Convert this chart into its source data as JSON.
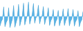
{
  "values": [
    3.0,
    5.5,
    7.0,
    14.0,
    2.5,
    5.0,
    6.5,
    13.5,
    2.0,
    4.5,
    7.0,
    14.8,
    2.2,
    5.0,
    7.5,
    15.5,
    3.0,
    6.0,
    8.5,
    16.2,
    3.5,
    6.5,
    9.0,
    16.8,
    4.0,
    7.0,
    9.5,
    16.0,
    4.5,
    7.5,
    9.2,
    15.0,
    4.2,
    7.2,
    8.8,
    14.2,
    3.8,
    6.8,
    8.2,
    13.5,
    3.2,
    6.0,
    7.5,
    12.5,
    2.8,
    5.5,
    7.0,
    12.0,
    3.0,
    5.8,
    7.2,
    12.8,
    3.2,
    6.0,
    7.5,
    13.0,
    3.0,
    5.8,
    7.2,
    12.5,
    2.8,
    5.5,
    6.8,
    11.8,
    2.5,
    5.2,
    6.5,
    11.2
  ],
  "line_color": "#4fa8d8",
  "fill_color": "#5ab4e8",
  "background_color": "#ffffff",
  "baseline": 8.5,
  "ylim_min": 0.0,
  "ylim_max": 18.0
}
